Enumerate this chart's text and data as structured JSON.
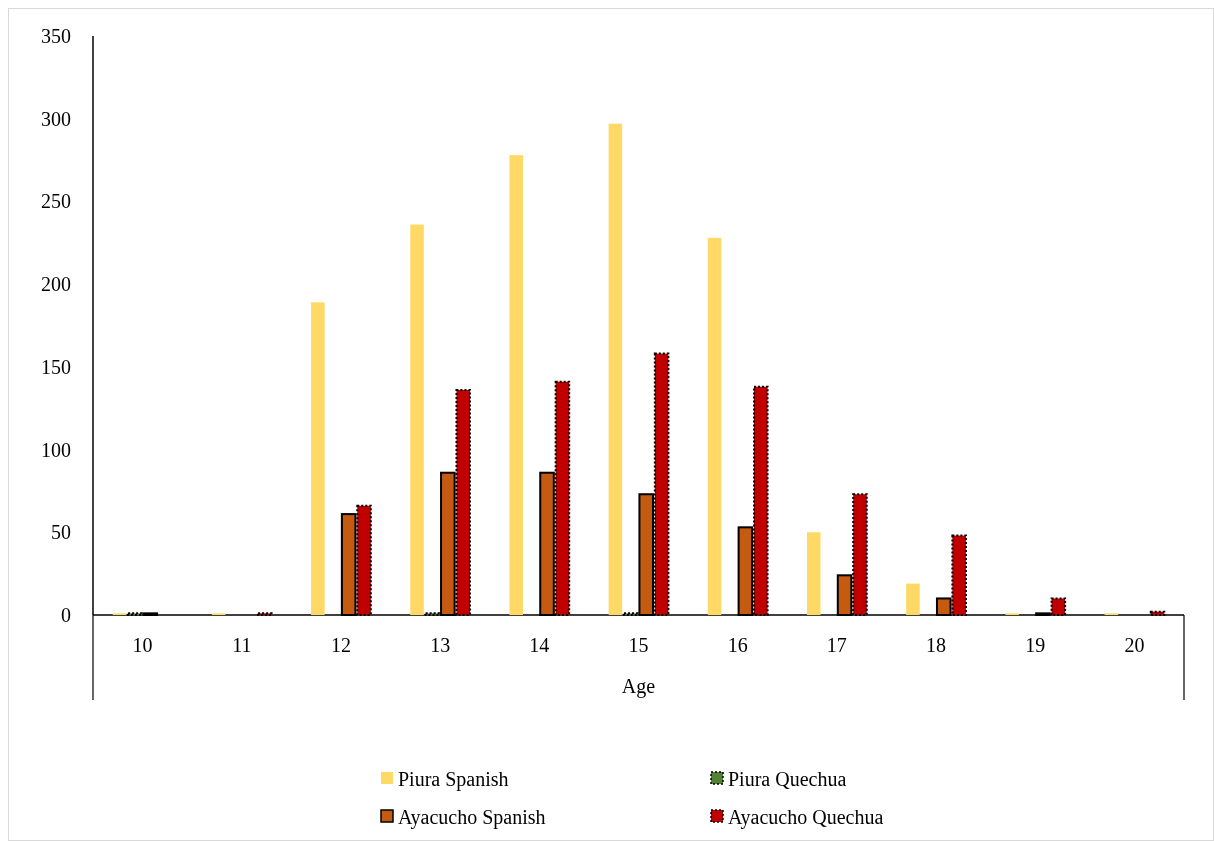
{
  "chart_data": {
    "type": "bar",
    "xlabel": "Age",
    "categories": [
      "10",
      "11",
      "12",
      "13",
      "14",
      "15",
      "16",
      "17",
      "18",
      "19",
      "20"
    ],
    "series": [
      {
        "name": "Piura Spanish",
        "color": "#ffd966",
        "values": [
          1,
          1,
          189,
          236,
          278,
          297,
          228,
          50,
          19,
          1,
          1
        ]
      },
      {
        "name": "Piura Quechua",
        "color": "#548235",
        "line_style": "dotted",
        "values": [
          1,
          0,
          0,
          1,
          0,
          1,
          0,
          0,
          0,
          0,
          0
        ]
      },
      {
        "name": "Ayacucho Spanish",
        "color": "#c55a11",
        "line_style": "solid",
        "values": [
          1,
          0,
          61,
          86,
          86,
          73,
          53,
          24,
          10,
          1,
          0
        ]
      },
      {
        "name": "Ayacucho Quechua",
        "color": "#c00000",
        "line_style": "dotted",
        "values": [
          0,
          1,
          66,
          136,
          141,
          158,
          138,
          73,
          48,
          10,
          2
        ]
      }
    ],
    "ylim": [
      0,
      350
    ],
    "yticks": [
      0,
      50,
      100,
      150,
      200,
      250,
      300,
      350
    ],
    "grid": false,
    "legend": "bottom"
  }
}
